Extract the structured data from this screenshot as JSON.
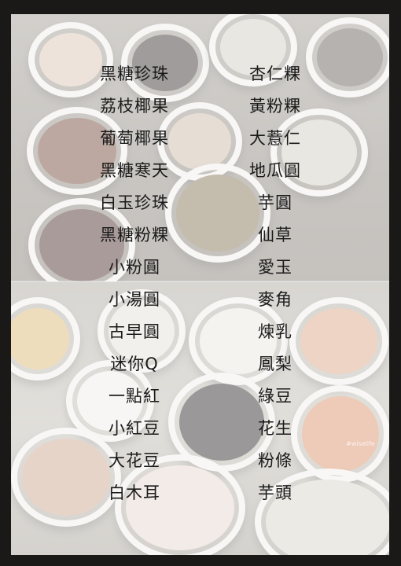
{
  "menu": {
    "left_column": [
      "黑糖珍珠",
      "荔枝椰果",
      "葡萄椰果",
      "黑糖寒天",
      "白玉珍珠",
      "黑糖粉粿",
      "小粉圓",
      "小湯圓",
      "古早圓",
      "迷你Q",
      "一點紅",
      "小紅豆",
      "大花豆",
      "白木耳"
    ],
    "right_column": [
      "杏仁粿",
      "黃粉粿",
      "大薏仁",
      "地瓜圓",
      "芋圓",
      "仙草",
      "愛玉",
      "麥角",
      "煉乳",
      "鳳梨",
      "綠豆",
      "花生",
      "粉條",
      "芋頭"
    ]
  },
  "photo": {
    "watermark": "#wiselife"
  },
  "colors": {
    "text": "#1a1a1a",
    "frame": "#1b1917",
    "cup_rim": "#f0eeea"
  }
}
